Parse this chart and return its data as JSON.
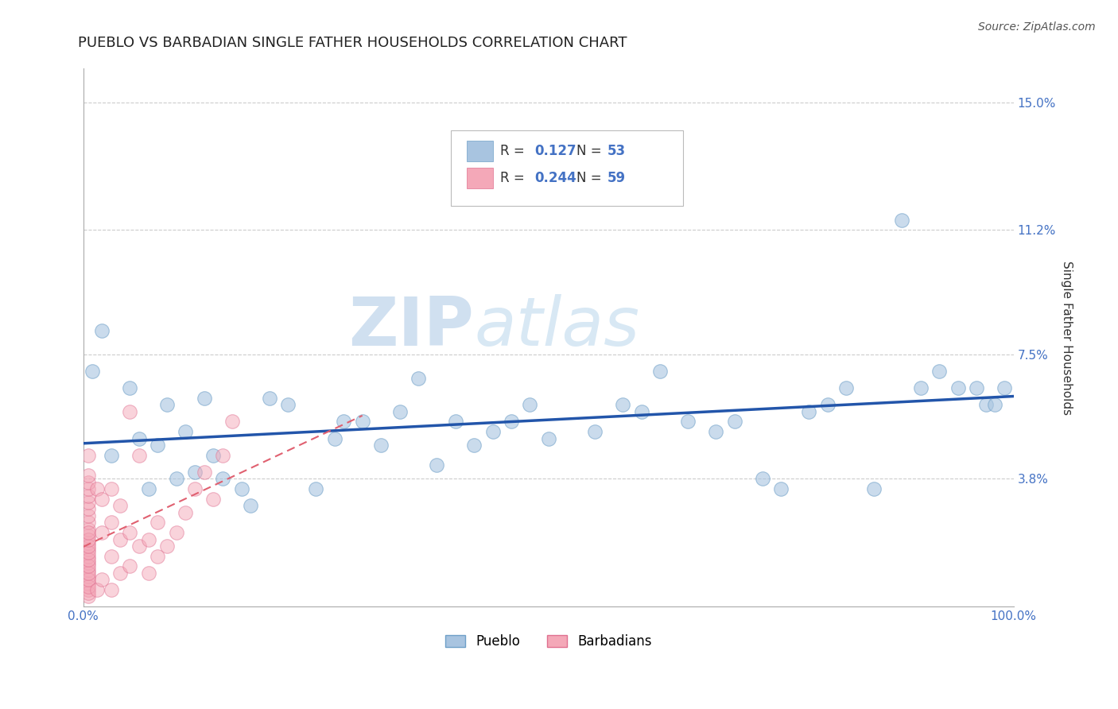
{
  "title": "PUEBLO VS BARBADIAN SINGLE FATHER HOUSEHOLDS CORRELATION CHART",
  "source_text": "Source: ZipAtlas.com",
  "ylabel": "Single Father Households",
  "xlim": [
    0,
    100
  ],
  "ylim": [
    0,
    16.0
  ],
  "yticks": [
    0,
    3.8,
    7.5,
    11.2,
    15.0
  ],
  "xtick_labels": [
    "0.0%",
    "100.0%"
  ],
  "ytick_labels": [
    "",
    "3.8%",
    "7.5%",
    "11.2%",
    "15.0%"
  ],
  "pueblo_color": "#a8c4e0",
  "pueblo_edge_color": "#6fa0c8",
  "barbadian_color": "#f4a8b8",
  "barbadian_edge_color": "#e07090",
  "pueblo_line_color": "#2255aa",
  "barbadian_line_color": "#e06070",
  "pueblo_R": 0.127,
  "pueblo_N": 53,
  "barbadian_R": 0.244,
  "barbadian_N": 59,
  "pueblo_scatter_x": [
    1,
    2,
    3,
    5,
    6,
    7,
    8,
    9,
    10,
    11,
    12,
    13,
    14,
    15,
    17,
    18,
    20,
    22,
    25,
    27,
    28,
    30,
    32,
    34,
    36,
    38,
    40,
    42,
    44,
    46,
    48,
    50,
    55,
    58,
    60,
    62,
    65,
    68,
    70,
    73,
    75,
    78,
    80,
    82,
    85,
    88,
    90,
    92,
    94,
    96,
    97,
    98,
    99
  ],
  "pueblo_scatter_y": [
    7.0,
    8.2,
    4.5,
    6.5,
    5.0,
    3.5,
    4.8,
    6.0,
    3.8,
    5.2,
    4.0,
    6.2,
    4.5,
    3.8,
    3.5,
    3.0,
    6.2,
    6.0,
    3.5,
    5.0,
    5.5,
    5.5,
    4.8,
    5.8,
    6.8,
    4.2,
    5.5,
    4.8,
    5.2,
    5.5,
    6.0,
    5.0,
    5.2,
    6.0,
    5.8,
    7.0,
    5.5,
    5.2,
    5.5,
    3.8,
    3.5,
    5.8,
    6.0,
    6.5,
    3.5,
    11.5,
    6.5,
    7.0,
    6.5,
    6.5,
    6.0,
    6.0,
    6.5
  ],
  "barbadian_scatter_x": [
    0.5,
    0.5,
    0.5,
    0.5,
    0.5,
    0.5,
    0.5,
    0.5,
    0.5,
    0.5,
    0.5,
    0.5,
    0.5,
    0.5,
    0.5,
    0.5,
    0.5,
    0.5,
    0.5,
    0.5,
    0.5,
    0.5,
    0.5,
    0.5,
    0.5,
    0.5,
    0.5,
    0.5,
    0.5,
    0.5,
    1.5,
    1.5,
    2,
    2,
    2,
    3,
    3,
    3,
    3,
    4,
    4,
    4,
    5,
    5,
    5,
    6,
    6,
    7,
    7,
    8,
    8,
    9,
    10,
    11,
    12,
    13,
    14,
    15,
    16
  ],
  "barbadian_scatter_y": [
    0.3,
    0.5,
    0.7,
    0.9,
    1.1,
    1.3,
    1.5,
    1.7,
    1.9,
    2.1,
    2.3,
    2.5,
    2.7,
    2.9,
    3.1,
    3.3,
    3.5,
    3.7,
    3.9,
    0.4,
    0.6,
    0.8,
    1.0,
    1.2,
    1.4,
    1.6,
    1.8,
    2.0,
    2.2,
    4.5,
    0.5,
    3.5,
    0.8,
    2.2,
    3.2,
    0.5,
    1.5,
    2.5,
    3.5,
    1.0,
    2.0,
    3.0,
    1.2,
    2.2,
    5.8,
    1.8,
    4.5,
    1.0,
    2.0,
    1.5,
    2.5,
    1.8,
    2.2,
    2.8,
    3.5,
    4.0,
    3.2,
    4.5,
    5.5
  ],
  "watermark_zip": "ZIP",
  "watermark_atlas": "atlas",
  "watermark_color": "#d0e0f0",
  "background_color": "#ffffff",
  "grid_color": "#cccccc",
  "title_fontsize": 13,
  "axis_label_fontsize": 11,
  "tick_fontsize": 11
}
